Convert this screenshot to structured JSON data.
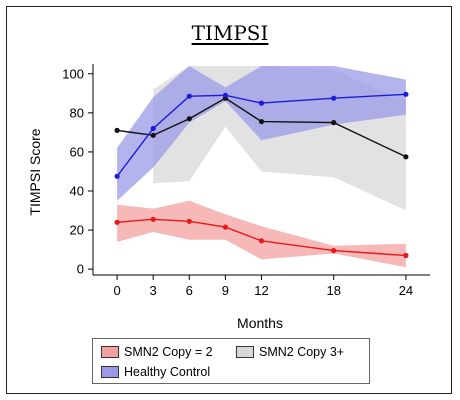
{
  "chart_data": {
    "type": "line",
    "title": "TIMPSI",
    "xlabel": "Months",
    "ylabel": "TIMPSI Score",
    "x": [
      0,
      3,
      6,
      9,
      12,
      18,
      24
    ],
    "xticks": [
      "0",
      "3",
      "6",
      "9",
      "12",
      "18",
      "24"
    ],
    "yticks": [
      "0",
      "20",
      "40",
      "60",
      "80",
      "100"
    ],
    "xlim": [
      -2,
      26
    ],
    "ylim": [
      -3,
      105
    ],
    "grid": false,
    "legend_position": "bottom",
    "series": [
      {
        "name": "SMN2 Copy = 2",
        "line_color": "#e81818",
        "band_color": "#f4a0a0",
        "values": [
          24,
          25.5,
          24.5,
          21.5,
          14.5,
          9.5,
          7
        ],
        "lower": [
          14,
          19,
          15,
          15,
          5,
          8,
          1
        ],
        "upper": [
          33,
          31,
          35,
          28,
          22,
          12,
          13
        ]
      },
      {
        "name": "SMN2 Copy 3+",
        "line_color": "#111111",
        "band_color": "#d8d8d8",
        "values": [
          71,
          68.5,
          77,
          87.5,
          75.5,
          75,
          57.5
        ],
        "lower": [
          null,
          44,
          45,
          73,
          50,
          47,
          30
        ],
        "upper": [
          null,
          92,
          104,
          104,
          104,
          102,
          86
        ]
      },
      {
        "name": "Healthy Control",
        "line_color": "#1c1cd8",
        "band_color": "#9a9ae8",
        "values": [
          47.5,
          72,
          88.5,
          89,
          85,
          87.5,
          89.5
        ],
        "lower": [
          35,
          52,
          75,
          86,
          66,
          74,
          79
        ],
        "upper": [
          62,
          88,
          104,
          93,
          104,
          104,
          97
        ]
      }
    ]
  }
}
